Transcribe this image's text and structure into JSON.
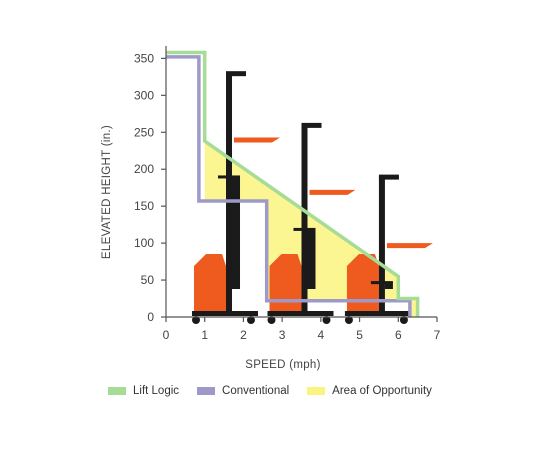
{
  "chart_data": {
    "type": "area",
    "xlabel": "SPEED (mph)",
    "ylabel": "ELEVATED HEIGHT (in.)",
    "xlim": [
      0,
      7
    ],
    "ylim": [
      0,
      360
    ],
    "x_ticks": [
      0,
      1,
      2,
      3,
      4,
      5,
      6,
      7
    ],
    "y_ticks": [
      0,
      50,
      100,
      150,
      200,
      250,
      300,
      350
    ],
    "series": [
      {
        "name": "Lift Logic",
        "color": "#a6dc96",
        "points": [
          [
            0,
            358
          ],
          [
            1,
            358
          ],
          [
            1,
            238
          ],
          [
            6,
            55
          ],
          [
            6,
            25
          ],
          [
            6.5,
            25
          ],
          [
            6.5,
            0
          ]
        ]
      },
      {
        "name": "Conventional",
        "color": "#9d9ac9",
        "points": [
          [
            0,
            352
          ],
          [
            0.85,
            352
          ],
          [
            0.85,
            157
          ],
          [
            2.6,
            157
          ],
          [
            2.6,
            22
          ],
          [
            6.3,
            22
          ],
          [
            6.3,
            0
          ]
        ]
      },
      {
        "name": "Area of Opportunity",
        "color": "#fbf57f"
      }
    ],
    "trucks": [
      {
        "x": 1.55,
        "mast_height": 330,
        "fork_height": 243
      },
      {
        "x": 3.5,
        "mast_height": 260,
        "fork_height": 172
      },
      {
        "x": 5.5,
        "mast_height": 190,
        "fork_height": 100
      }
    ]
  }
}
